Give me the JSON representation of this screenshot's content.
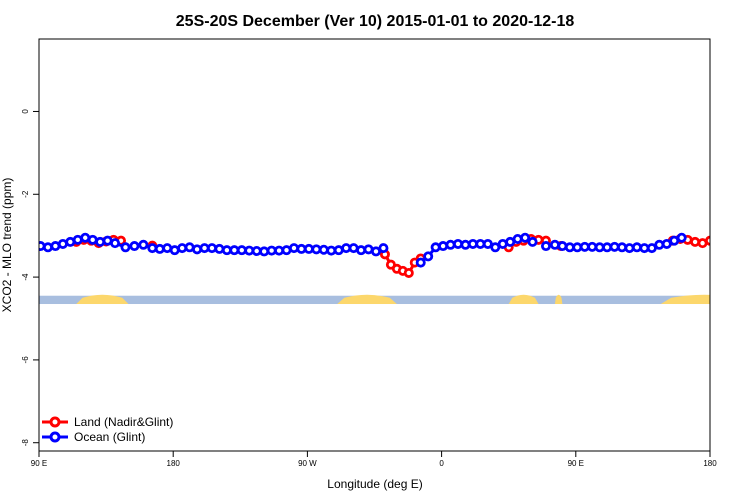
{
  "chart_data": {
    "type": "line",
    "title": "25S-20S December (Ver 10)   2015-01-01 to 2020-12-18",
    "xlabel": "Longitude (deg E)",
    "ylabel": "XCO2 - MLO trend (ppm)",
    "xlim": [
      90,
      540
    ],
    "ylim": [
      -8.2,
      1.75
    ],
    "x_ticks": [
      90,
      180,
      270,
      360,
      450,
      540
    ],
    "x_tick_labels": [
      "90 E",
      "180",
      "90 W",
      "0",
      "90 E",
      "180"
    ],
    "y_ticks": [
      0,
      -2,
      -4,
      -6,
      -8
    ],
    "y_tick_labels": [
      "0",
      "-2",
      "-4",
      "-6",
      "-8"
    ],
    "grid": false,
    "legend_position": "bottom-left",
    "land_ocean_strip": {
      "y_range": [
        -4.45,
        -4.65
      ],
      "ocean_color": "#a8bedf",
      "land_color": "#fcd76c",
      "land_segments": [
        [
          115,
          150
        ],
        [
          290,
          330
        ],
        [
          405,
          425
        ],
        [
          436,
          441
        ],
        [
          507,
          565
        ]
      ]
    },
    "series": [
      {
        "name": "Land (Nadir&Glint)",
        "color": "#ff0000",
        "x": [
          115,
          120,
          125,
          130,
          135,
          140,
          145,
          166,
          322,
          326,
          330,
          334,
          338,
          342,
          346,
          405,
          410,
          415,
          420,
          425,
          430,
          440,
          515,
          520,
          525,
          530,
          535,
          540,
          545,
          550,
          556
        ],
        "y": [
          -3.15,
          -3.1,
          -3.12,
          -3.18,
          -3.14,
          -3.1,
          -3.12,
          -3.24,
          -3.45,
          -3.7,
          -3.8,
          -3.85,
          -3.9,
          -3.65,
          -3.55,
          -3.28,
          -3.15,
          -3.12,
          -3.08,
          -3.1,
          -3.12,
          -3.25,
          -3.12,
          -3.08,
          -3.1,
          -3.15,
          -3.18,
          -3.12,
          -3.14,
          -3.12,
          -3.22
        ]
      },
      {
        "name": "Ocean (Glint)",
        "color": "#0000ff",
        "x": [
          91,
          96,
          101,
          106,
          111,
          116,
          121,
          126,
          131,
          136,
          141,
          148,
          154,
          160,
          166,
          171,
          176,
          181,
          186,
          191,
          196,
          201,
          206,
          211,
          216,
          221,
          226,
          231,
          236,
          241,
          246,
          251,
          256,
          261,
          266,
          271,
          276,
          281,
          286,
          291,
          296,
          301,
          306,
          311,
          316,
          321,
          346,
          351,
          356,
          361,
          366,
          371,
          376,
          381,
          386,
          391,
          396,
          401,
          406,
          411,
          416,
          421,
          430,
          436,
          441,
          446,
          451,
          456,
          461,
          466,
          471,
          476,
          481,
          486,
          491,
          496,
          501,
          506,
          511,
          516,
          521,
          549,
          554,
          559,
          564,
          569,
          574,
          579,
          584,
          589
        ],
        "y": [
          -3.25,
          -3.28,
          -3.25,
          -3.2,
          -3.15,
          -3.1,
          -3.05,
          -3.1,
          -3.15,
          -3.12,
          -3.18,
          -3.28,
          -3.25,
          -3.22,
          -3.3,
          -3.32,
          -3.3,
          -3.35,
          -3.3,
          -3.28,
          -3.33,
          -3.3,
          -3.3,
          -3.32,
          -3.35,
          -3.35,
          -3.35,
          -3.36,
          -3.37,
          -3.38,
          -3.36,
          -3.36,
          -3.35,
          -3.3,
          -3.32,
          -3.32,
          -3.33,
          -3.34,
          -3.36,
          -3.35,
          -3.3,
          -3.3,
          -3.35,
          -3.33,
          -3.38,
          -3.3,
          -3.65,
          -3.5,
          -3.28,
          -3.25,
          -3.22,
          -3.2,
          -3.22,
          -3.2,
          -3.2,
          -3.2,
          -3.28,
          -3.2,
          -3.15,
          -3.08,
          -3.05,
          -3.15,
          -3.25,
          -3.22,
          -3.25,
          -3.28,
          -3.28,
          -3.27,
          -3.27,
          -3.28,
          -3.28,
          -3.27,
          -3.28,
          -3.3,
          -3.28,
          -3.3,
          -3.3,
          -3.22,
          -3.2,
          -3.12,
          -3.05,
          -3.28,
          -3.26,
          -3.25,
          -3.3,
          -3.28,
          -3.32,
          -3.3,
          -3.33,
          -3.33
        ]
      }
    ]
  }
}
